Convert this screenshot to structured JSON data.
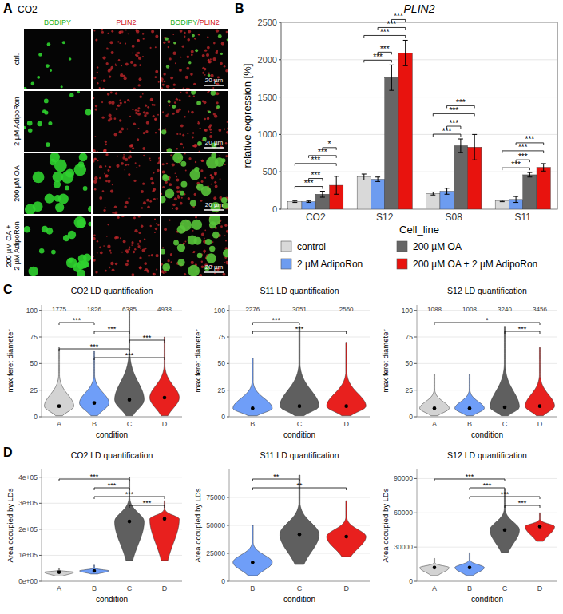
{
  "panel_labels": [
    "A",
    "B",
    "C",
    "D"
  ],
  "image_panel": {
    "title": "CO2",
    "channels": [
      "BODIPY",
      "PLIN2"
    ],
    "merge_label": [
      "BODIPY",
      "/PLIN2"
    ],
    "rows": [
      [
        "ctrl."
      ],
      [
        "2 µM AdipoRon"
      ],
      [
        "200 µM OA"
      ],
      [
        "200 µM OA +",
        "2 µM AdipoRon"
      ]
    ],
    "scale_bar": "20 µm"
  },
  "chart_data": [
    {
      "type": "bar",
      "title": "PLIN2",
      "x_label": "Cell_line",
      "y_label": "relative expression [%]",
      "categories": [
        "CO2",
        "S12",
        "S08",
        "S11"
      ],
      "series": [
        {
          "name": "control",
          "color": "#d9d9d9",
          "values": [
            100,
            430,
            210,
            110
          ],
          "errors": [
            10,
            40,
            20,
            10
          ]
        },
        {
          "name": "2 µM AdipoRon",
          "color": "#6d9cf0",
          "values": [
            100,
            400,
            240,
            130
          ],
          "errors": [
            10,
            30,
            40,
            40
          ]
        },
        {
          "name": "200 µM OA",
          "color": "#666666",
          "values": [
            200,
            1760,
            850,
            460
          ],
          "errors": [
            40,
            170,
            90,
            30
          ]
        },
        {
          "name": "200 µM OA + 2 µM AdipoRon",
          "color": "#e8130e",
          "values": [
            320,
            2090,
            830,
            560
          ],
          "errors": [
            120,
            170,
            170,
            50
          ]
        }
      ],
      "ylim": [
        0,
        2500
      ],
      "yticks": [
        0,
        500,
        1000,
        1500,
        2000,
        2500
      ],
      "grid": true,
      "legend": "bottom",
      "annotations": [
        {
          "category": 0,
          "pair": [
            0,
            2
          ],
          "label": "***"
        },
        {
          "category": 0,
          "pair": [
            1,
            2
          ],
          "label": "***"
        },
        {
          "category": 0,
          "pair": [
            0,
            3
          ],
          "label": "***"
        },
        {
          "category": 0,
          "pair": [
            1,
            3
          ],
          "label": "***"
        },
        {
          "category": 0,
          "pair": [
            2,
            3
          ],
          "label": "*"
        },
        {
          "category": 1,
          "pair": [
            0,
            2
          ],
          "label": "***"
        },
        {
          "category": 1,
          "pair": [
            1,
            2
          ],
          "label": "***"
        },
        {
          "category": 1,
          "pair": [
            0,
            3
          ],
          "label": "***"
        },
        {
          "category": 1,
          "pair": [
            1,
            3
          ],
          "label": "***"
        },
        {
          "category": 1,
          "pair": [
            2,
            3
          ],
          "label": "***"
        },
        {
          "category": 2,
          "pair": [
            0,
            2
          ],
          "label": "***"
        },
        {
          "category": 2,
          "pair": [
            1,
            2
          ],
          "label": "***"
        },
        {
          "category": 2,
          "pair": [
            0,
            3
          ],
          "label": "***"
        },
        {
          "category": 2,
          "pair": [
            1,
            3
          ],
          "label": "***"
        },
        {
          "category": 3,
          "pair": [
            0,
            2
          ],
          "label": "***"
        },
        {
          "category": 3,
          "pair": [
            1,
            2
          ],
          "label": "***"
        },
        {
          "category": 3,
          "pair": [
            0,
            3
          ],
          "label": "***"
        },
        {
          "category": 3,
          "pair": [
            1,
            3
          ],
          "label": "***"
        }
      ]
    },
    {
      "type": "violin",
      "title": "CO2 LD quantification",
      "x_label": "condition",
      "y_label": "max feret diameter",
      "categories": [
        "A",
        "B",
        "C",
        "D"
      ],
      "colors": [
        "#d3d3d3",
        "#6f9ef8",
        "#5f5f5f",
        "#e8201e"
      ],
      "counts": [
        1775,
        1826,
        6385,
        4938
      ],
      "mins": [
        1,
        1,
        1,
        1
      ],
      "maxs": [
        65,
        62,
        100,
        75
      ],
      "means": [
        10,
        13,
        16,
        18
      ],
      "ylim": [
        0,
        105
      ],
      "yticks": [
        0,
        25,
        50,
        75,
        100
      ],
      "grid": true,
      "annotations": [
        {
          "pair": [
            0,
            1
          ],
          "label": "***"
        },
        {
          "pair": [
            1,
            2
          ],
          "label": "***"
        },
        {
          "pair": [
            2,
            3
          ],
          "label": "***"
        },
        {
          "pair": [
            0,
            2
          ],
          "label": "***"
        },
        {
          "pair": [
            1,
            3
          ],
          "label": "***"
        }
      ]
    },
    {
      "type": "violin",
      "title": "S11 LD quantification",
      "x_label": "condition",
      "y_label": "max feret diameter",
      "categories": [
        "B",
        "C",
        "D"
      ],
      "colors": [
        "#6f9ef8",
        "#5f5f5f",
        "#e8201e"
      ],
      "counts": [
        2276,
        3051,
        2560
      ],
      "mins": [
        1,
        1,
        1
      ],
      "maxs": [
        55,
        85,
        70
      ],
      "means": [
        8,
        10,
        10
      ],
      "ylim": [
        0,
        105
      ],
      "yticks": [
        0,
        25,
        50,
        75,
        100
      ],
      "grid": true,
      "annotations": [
        {
          "pair": [
            0,
            1
          ],
          "label": "***"
        },
        {
          "pair": [
            0,
            2
          ],
          "label": "***"
        }
      ]
    },
    {
      "type": "violin",
      "title": "S12 LD quantification",
      "x_label": "condition",
      "y_label": "max feret diameter",
      "categories": [
        "A",
        "B",
        "C",
        "D"
      ],
      "colors": [
        "#d3d3d3",
        "#6f9ef8",
        "#5f5f5f",
        "#e8201e"
      ],
      "counts": [
        1088,
        1008,
        3240,
        3456
      ],
      "mins": [
        1,
        1,
        1,
        1
      ],
      "maxs": [
        40,
        40,
        85,
        65
      ],
      "means": [
        8,
        8,
        9,
        10
      ],
      "ylim": [
        0,
        105
      ],
      "yticks": [
        0,
        25,
        50,
        75,
        100
      ],
      "grid": true,
      "annotations": [
        {
          "pair": [
            0,
            3
          ],
          "label": "*"
        },
        {
          "pair": [
            2,
            3
          ],
          "label": "***"
        }
      ]
    },
    {
      "type": "violin",
      "title": "CO2 LD quantification",
      "x_label": "condition",
      "y_label": "Area occupied by LDs",
      "categories": [
        "A",
        "B",
        "C",
        "D"
      ],
      "colors": [
        "#d3d3d3",
        "#6f9ef8",
        "#5f5f5f",
        "#e8201e"
      ],
      "mins": [
        20000,
        28000,
        80000,
        80000
      ],
      "maxs": [
        50000,
        62000,
        400000,
        310000
      ],
      "means": [
        35000,
        40000,
        230000,
        240000
      ],
      "ylim": [
        0,
        430000
      ],
      "yticks": [
        {
          "value": 0,
          "label": "0e+00"
        },
        {
          "value": 100000,
          "label": "1e+05"
        },
        {
          "value": 200000,
          "label": "2e+05"
        },
        {
          "value": 300000,
          "label": "3e+05"
        },
        {
          "value": 400000,
          "label": "4e+05"
        }
      ],
      "grid": true,
      "annotations": [
        {
          "pair": [
            0,
            2
          ],
          "label": "***"
        },
        {
          "pair": [
            1,
            2
          ],
          "label": "***"
        },
        {
          "pair": [
            1,
            3
          ],
          "label": "***"
        },
        {
          "pair": [
            2,
            3
          ],
          "label": "***"
        }
      ]
    },
    {
      "type": "violin",
      "title": "S11 LD quantification",
      "x_label": "condition",
      "y_label": "Area occupied by LDs",
      "categories": [
        "B",
        "C",
        "D"
      ],
      "colors": [
        "#6f9ef8",
        "#5f5f5f",
        "#e8201e"
      ],
      "mins": [
        5000,
        15000,
        22000
      ],
      "maxs": [
        50000,
        95000,
        72000
      ],
      "means": [
        17000,
        42000,
        40000
      ],
      "ylim": [
        0,
        100000
      ],
      "yticks": [
        0,
        25000,
        50000,
        75000
      ],
      "grid": true,
      "annotations": [
        {
          "pair": [
            0,
            1
          ],
          "label": "**"
        },
        {
          "pair": [
            0,
            2
          ],
          "label": "**"
        }
      ]
    },
    {
      "type": "violin",
      "title": "S12 LD quantification",
      "x_label": "condition",
      "y_label": "Area occupied by LDs",
      "categories": [
        "A",
        "B",
        "C",
        "D"
      ],
      "colors": [
        "#d3d3d3",
        "#6f9ef8",
        "#5f5f5f",
        "#e8201e"
      ],
      "mins": [
        5000,
        5000,
        25000,
        35000
      ],
      "maxs": [
        20000,
        25000,
        80000,
        60000
      ],
      "means": [
        12000,
        12000,
        45000,
        48000
      ],
      "ylim": [
        0,
        98000
      ],
      "yticks": [
        0,
        30000,
        60000,
        90000
      ],
      "grid": true,
      "annotations": [
        {
          "pair": [
            0,
            2
          ],
          "label": "***"
        },
        {
          "pair": [
            1,
            2
          ],
          "label": "***"
        },
        {
          "pair": [
            1,
            3
          ],
          "label": "***"
        },
        {
          "pair": [
            2,
            3
          ],
          "label": "***"
        }
      ]
    }
  ]
}
